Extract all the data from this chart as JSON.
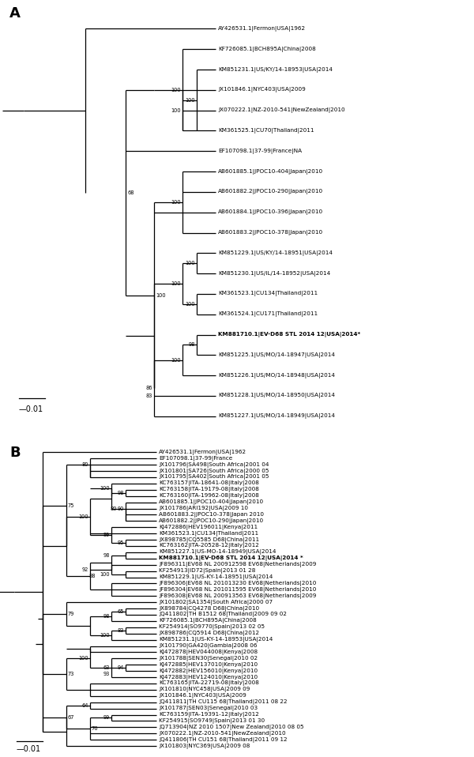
{
  "figsize": [
    6.0,
    9.58
  ],
  "dpi": 100,
  "background": "#ffffff",
  "panel_A": {
    "label": "A",
    "leaves": [
      "AY426531.1|Fermon|USA|1962",
      "KF726085.1|BCH895A|China|2008",
      "KM851231.1|US/KY/14-18953|USA|2014",
      "JX101846.1|NYC403|USA|2009",
      "JX070222.1|NZ-2010-541|NewZealand|2010",
      "KM361525.1|CU70|Thailand|2011",
      "EF107098.1|37-99|France|NA",
      "AB601885.1|JPOC10-404|Japan|2010",
      "AB601882.2|JPOC10-290|Japan|2010",
      "AB601884.1|JPOC10-396|Japan|2010",
      "AB601883.2|JPOC10-378|Japan|2010",
      "KM851229.1|US/KY/14-18951|USA|2014",
      "KM851230.1|US/IL/14-18952|USA|2014",
      "KM361523.1|CU134|Thailand|2011",
      "KM361524.1|CU171|Thailand|2011",
      "KM881710.1|EV-D68 STL 2014 12|USA|2014*",
      "KM851225.1|US/MO/14-18947|USA|2014",
      "KM851226.1|US/MO/14-18948|USA|2014",
      "KM851228.1|US/MO/14-18950|USA|2014",
      "KM851227.1|US/MO/14-18949|USA|2014"
    ],
    "bold_leaves": [
      "KM881710.1|EV-D68 STL 2014 12|USA|2014*"
    ]
  },
  "panel_B": {
    "label": "B",
    "leaves": [
      "AY426531.1|Fermon|USA|1962",
      "EF107098.1|37-99|France",
      "JX101796|SA498|South Africa|2001 04",
      "JX101801|SA726|South Africa|2000 05",
      "JX101795|SA402|South Africa|2001 05",
      "KC763157|ITA-18641-08|Italy|2008",
      "KC763158|ITA-19179-08|Italy|2008",
      "KC763160|ITA-19962-08|Italy|2008",
      "AB601885.1|JPOC10-404|Japan|2010",
      "JX101786|ARI192|USA|2009 10",
      "AB601883.2|JPOC10-378|Japan 2010",
      "AB601882.2|JPOC10-290|Japan|2010",
      "KJ472886|HEV196011|Kenya|2011",
      "KM361523.1|CU134|Thailand|2011",
      "JX898785|CQ5585 D68|China|2011",
      "KC763162|ITA-20528-12|Italy|2012",
      "KM851227.1|US-MO-14-18949|USA|2014",
      "KM881710.1|EV-D68 STL 2014 12|USA|2014 *",
      "JF896311|EV68 NL 200912598 EV68|Netherlands|2009",
      "KF254913|ID72|Spain|2013 01 28",
      "KM851229.1|US-KY-14-18951|USA|2014",
      "JF896306|EV68 NL 201013230 EV68|Netherlands|2010",
      "JF896304|EV68 NL 201011595 EV68|Netherlands|2010",
      "JF896308|EV68 NL 200913563 EV68|Netherlands|2009",
      "JX101802|SA1354|South Africa|2000 07",
      "JX898784|CQ4278 D68|China|2010",
      "JQ411802|TH B1512 68|Thailand|2009 09 02",
      "KF726085.1|BCH895A|China|2008",
      "KF254914|SO9770|Spain|2013 02 05",
      "JX898786|CQ5914 D68|China|2012",
      "KM851231.1|US-KY-14-18953|USA|2014",
      "JX101790|GA420|Gambia|2008 06",
      "KJ472878|HEV044008|Kenya|2008",
      "JX101788|SEN30|Senegal|2010 02",
      "KJ472885|HEV137010|Kenya|2010",
      "KJ472882|HEV156010|Kenya|2010",
      "KJ472883|HEV124010|Kenya|2010",
      "KC763165|ITA-22719-08|Italy|2008",
      "JX101810|NYC458|USA|2009 09",
      "JX101846.1|NYC403|USA|2009",
      "JQ411811|TH CU115 68|Thailand|2011 08 22",
      "JX101787|SEN03|Senegal|2010 03",
      "KC763159|ITA-19391-12|Italy|2012",
      "KF254915|SO9749|Spain|2013 01 30",
      "JQ713904|NZ 2010 1507|New Zealand|2010 08 05",
      "JX070222.1|NZ-2010-541|NewZealand|2010",
      "JQ411806|TH CU151 68|Thailand|2011 09 12",
      "JX101803|NYC369|USA|2009 08"
    ],
    "bold_leaves": [
      "KM881710.1|EV-D68 STL 2014 12|USA|2014 *"
    ]
  },
  "font_size_leaf": 5.2,
  "font_size_bootstrap": 4.8,
  "font_size_label": 13,
  "font_size_scale": 7,
  "line_width": 0.9
}
